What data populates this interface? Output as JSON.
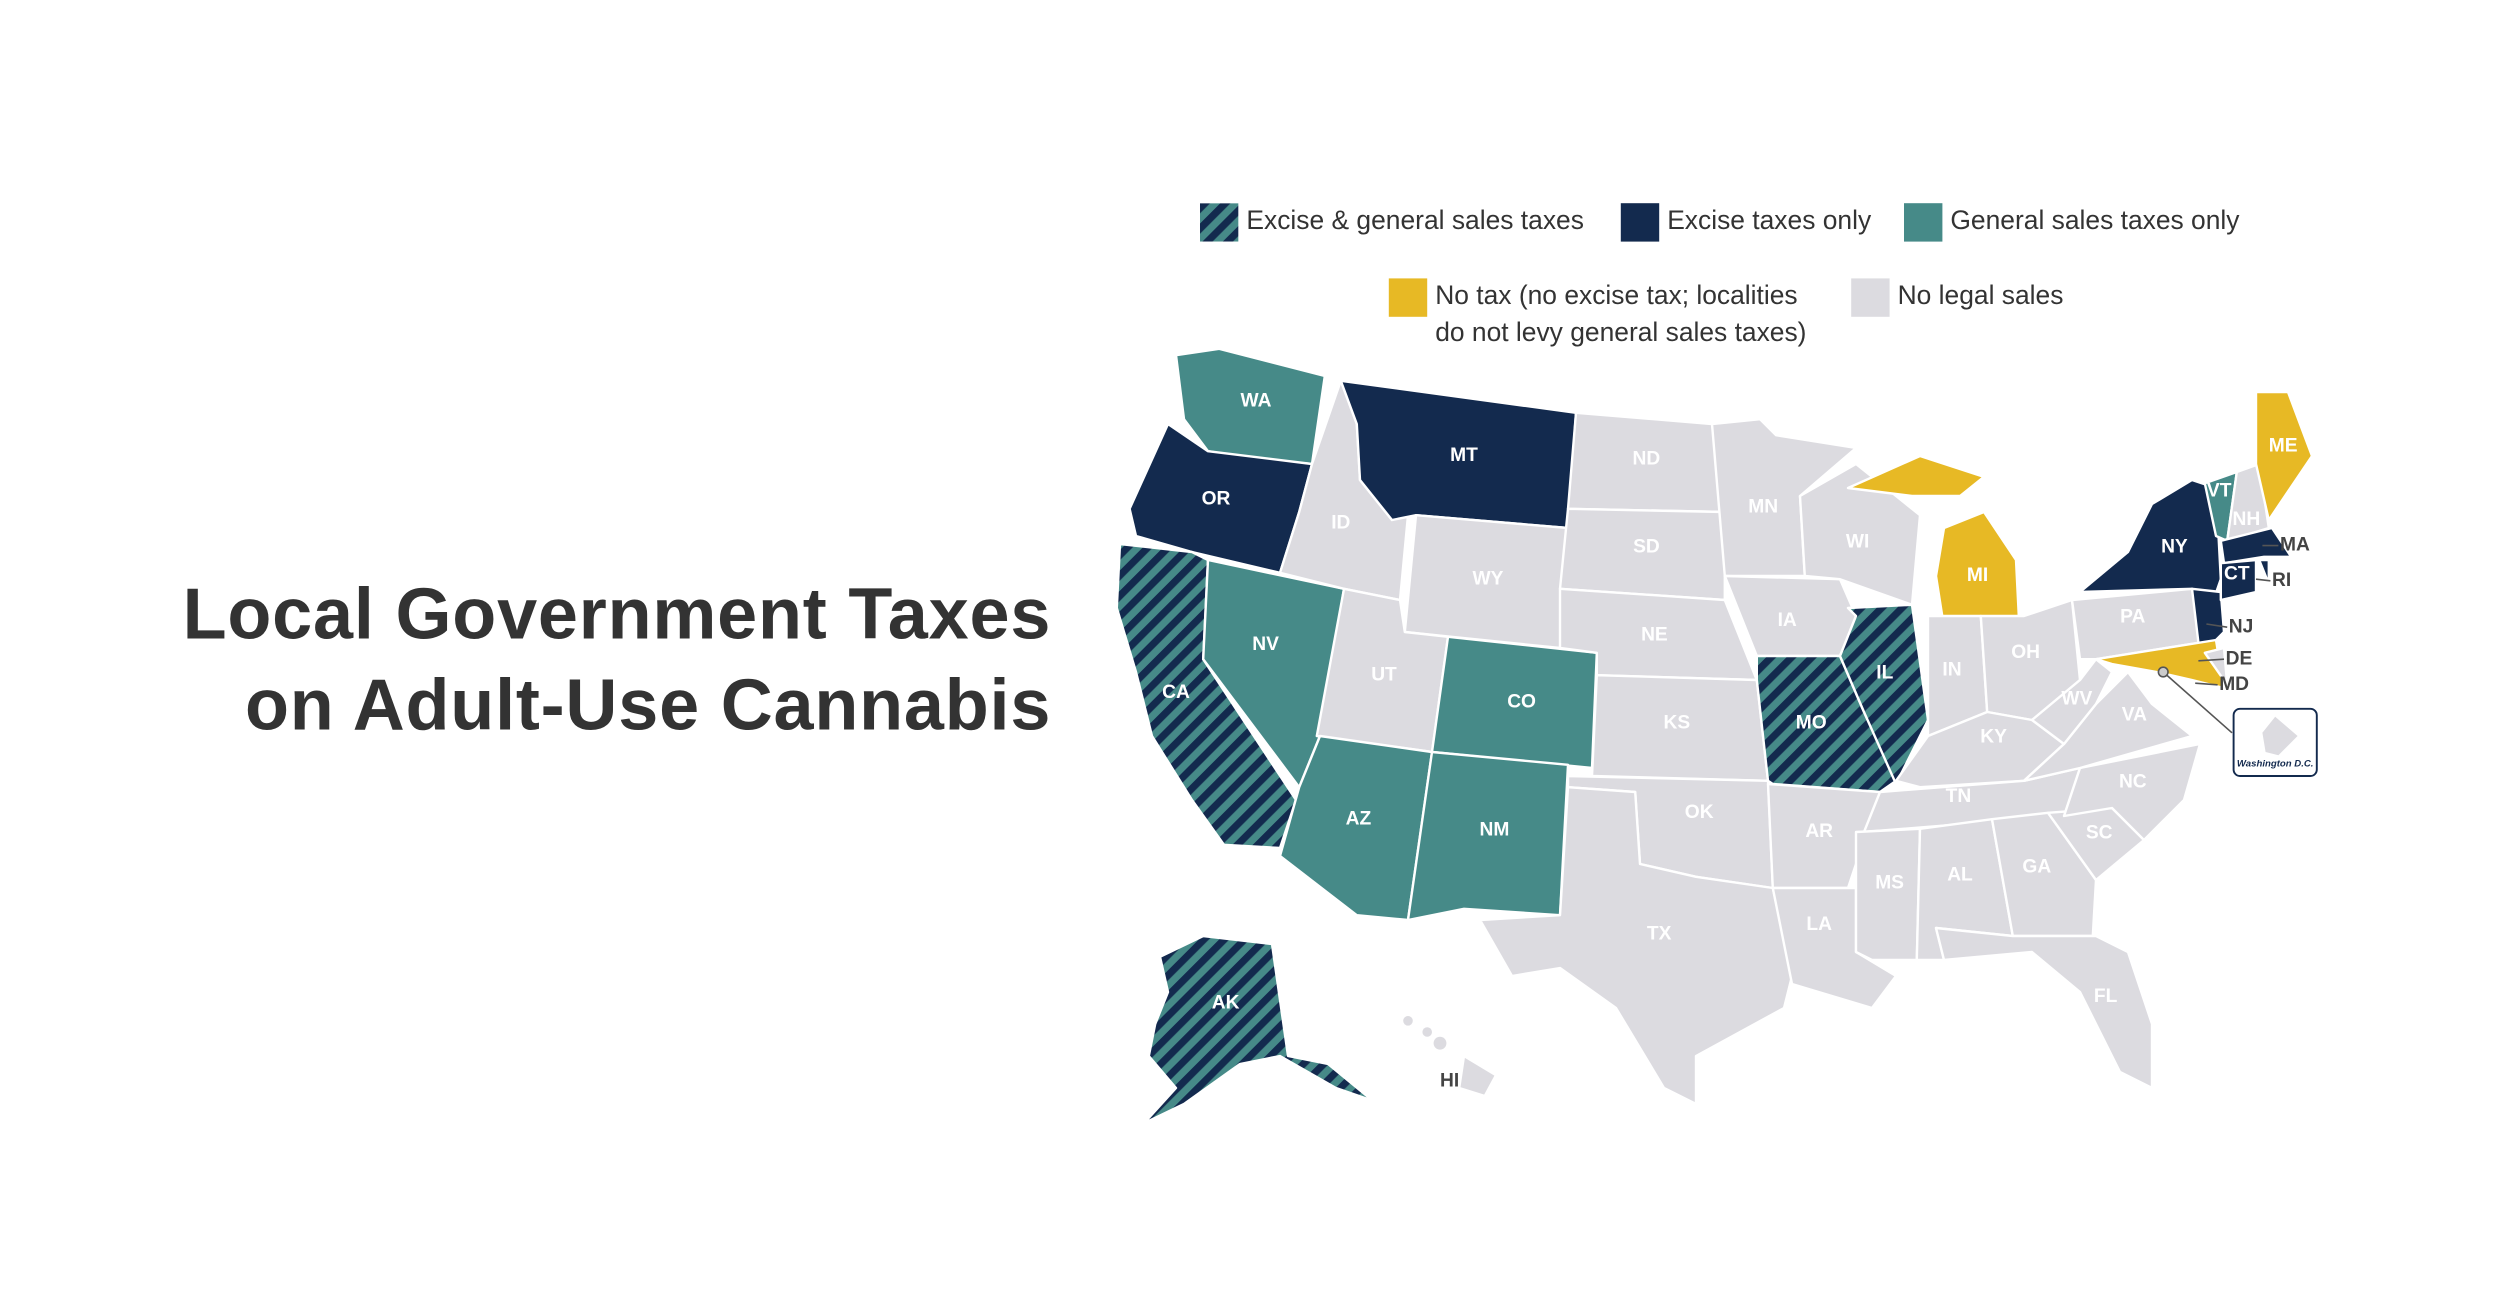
{
  "title": {
    "line1": "Local Government Taxes",
    "line2": "on Adult-Use Cannabis"
  },
  "colors": {
    "excise": "#132a4e",
    "general": "#468a88",
    "none": "#e7b925",
    "illegal": "#dcdbe0",
    "title": "#333333"
  },
  "legend": [
    {
      "key": "both",
      "label": "Excise & general sales taxes"
    },
    {
      "key": "excise",
      "label": "Excise taxes only"
    },
    {
      "key": "general",
      "label": "General sales taxes only"
    },
    {
      "key": "none",
      "label": "No tax (no excise tax; localities",
      "label2": "do not levy general sales taxes)"
    },
    {
      "key": "illegal",
      "label": "No legal sales"
    }
  ],
  "states": [
    {
      "code": "WA",
      "cat": "general"
    },
    {
      "code": "OR",
      "cat": "excise"
    },
    {
      "code": "CA",
      "cat": "both"
    },
    {
      "code": "NV",
      "cat": "general"
    },
    {
      "code": "ID",
      "cat": "illegal"
    },
    {
      "code": "MT",
      "cat": "excise"
    },
    {
      "code": "WY",
      "cat": "illegal"
    },
    {
      "code": "UT",
      "cat": "illegal"
    },
    {
      "code": "CO",
      "cat": "general"
    },
    {
      "code": "AZ",
      "cat": "general"
    },
    {
      "code": "NM",
      "cat": "general"
    },
    {
      "code": "ND",
      "cat": "illegal"
    },
    {
      "code": "SD",
      "cat": "illegal"
    },
    {
      "code": "NE",
      "cat": "illegal"
    },
    {
      "code": "KS",
      "cat": "illegal"
    },
    {
      "code": "OK",
      "cat": "illegal"
    },
    {
      "code": "TX",
      "cat": "illegal"
    },
    {
      "code": "MN",
      "cat": "illegal"
    },
    {
      "code": "IA",
      "cat": "illegal"
    },
    {
      "code": "MO",
      "cat": "both"
    },
    {
      "code": "AR",
      "cat": "illegal"
    },
    {
      "code": "LA",
      "cat": "illegal"
    },
    {
      "code": "WI",
      "cat": "illegal"
    },
    {
      "code": "IL",
      "cat": "both"
    },
    {
      "code": "MI",
      "cat": "none"
    },
    {
      "code": "IN",
      "cat": "illegal"
    },
    {
      "code": "OH",
      "cat": "illegal"
    },
    {
      "code": "KY",
      "cat": "illegal"
    },
    {
      "code": "TN",
      "cat": "illegal"
    },
    {
      "code": "MS",
      "cat": "illegal"
    },
    {
      "code": "AL",
      "cat": "illegal"
    },
    {
      "code": "GA",
      "cat": "illegal"
    },
    {
      "code": "FL",
      "cat": "illegal"
    },
    {
      "code": "SC",
      "cat": "illegal"
    },
    {
      "code": "NC",
      "cat": "illegal"
    },
    {
      "code": "VA",
      "cat": "illegal"
    },
    {
      "code": "WV",
      "cat": "illegal"
    },
    {
      "code": "PA",
      "cat": "illegal"
    },
    {
      "code": "NY",
      "cat": "excise"
    },
    {
      "code": "NJ",
      "cat": "excise"
    },
    {
      "code": "MD",
      "cat": "none"
    },
    {
      "code": "DE",
      "cat": "illegal"
    },
    {
      "code": "VT",
      "cat": "general"
    },
    {
      "code": "NH",
      "cat": "illegal"
    },
    {
      "code": "ME",
      "cat": "none"
    },
    {
      "code": "MA",
      "cat": "excise"
    },
    {
      "code": "CT",
      "cat": "excise"
    },
    {
      "code": "RI",
      "cat": "excise"
    },
    {
      "code": "AK",
      "cat": "both"
    },
    {
      "code": "HI",
      "cat": "illegal"
    }
  ],
  "dc_inset": {
    "label": "Washington D.C.",
    "cat": "illegal"
  }
}
